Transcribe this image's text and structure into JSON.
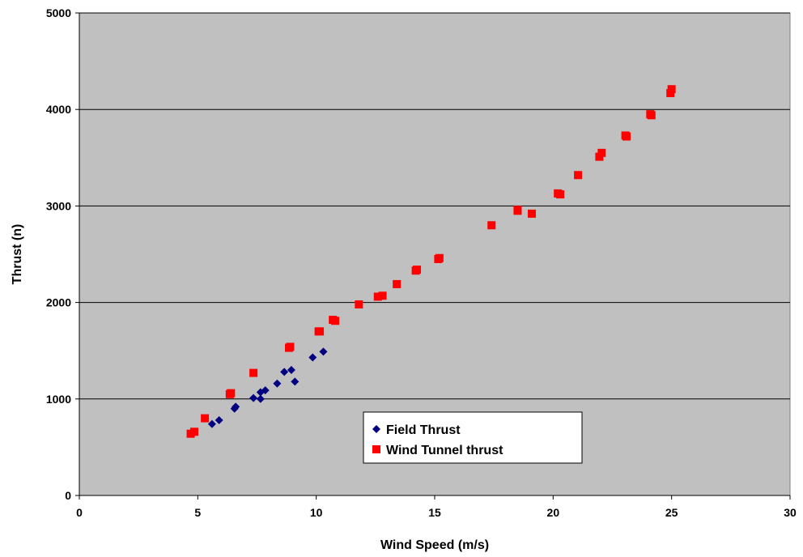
{
  "chart_data": {
    "type": "scatter",
    "title": "",
    "xlabel": "Wind Speed (m/s)",
    "ylabel": "Thrust (n)",
    "xlim": [
      0,
      30
    ],
    "ylim": [
      0,
      5000
    ],
    "x_ticks": [
      "0",
      "5",
      "10",
      "15",
      "20",
      "25",
      "30"
    ],
    "y_ticks": [
      "0",
      "1000",
      "2000",
      "3000",
      "4000",
      "5000"
    ],
    "grid": "horizontal",
    "legend_position": "bottom-center",
    "plot_background": "#c0c0c0",
    "series": [
      {
        "name": "Field Thrust",
        "marker": "diamond",
        "color": "#000080",
        "points": [
          [
            5.6,
            740
          ],
          [
            5.9,
            780
          ],
          [
            6.55,
            900
          ],
          [
            6.6,
            920
          ],
          [
            7.35,
            1010
          ],
          [
            7.65,
            1000
          ],
          [
            7.65,
            1070
          ],
          [
            7.85,
            1090
          ],
          [
            8.35,
            1160
          ],
          [
            8.65,
            1280
          ],
          [
            8.95,
            1300
          ],
          [
            9.1,
            1180
          ],
          [
            9.85,
            1430
          ],
          [
            10.3,
            1490
          ]
        ]
      },
      {
        "name": "Wind Tunnel thrust",
        "marker": "square",
        "color": "#ff0000",
        "points": [
          [
            4.7,
            640
          ],
          [
            4.85,
            660
          ],
          [
            5.3,
            800
          ],
          [
            6.35,
            1050
          ],
          [
            6.4,
            1060
          ],
          [
            7.35,
            1270
          ],
          [
            8.85,
            1530
          ],
          [
            8.9,
            1540
          ],
          [
            10.1,
            1700
          ],
          [
            10.15,
            1700
          ],
          [
            10.7,
            1820
          ],
          [
            10.8,
            1810
          ],
          [
            11.8,
            1980
          ],
          [
            12.6,
            2060
          ],
          [
            12.8,
            2070
          ],
          [
            13.4,
            2190
          ],
          [
            14.2,
            2330
          ],
          [
            14.25,
            2340
          ],
          [
            15.15,
            2450
          ],
          [
            15.2,
            2460
          ],
          [
            17.4,
            2800
          ],
          [
            18.5,
            2950
          ],
          [
            18.5,
            2960
          ],
          [
            19.1,
            2920
          ],
          [
            20.2,
            3130
          ],
          [
            20.3,
            3120
          ],
          [
            21.05,
            3320
          ],
          [
            21.95,
            3510
          ],
          [
            22.05,
            3550
          ],
          [
            23.05,
            3730
          ],
          [
            23.1,
            3720
          ],
          [
            24.1,
            3950
          ],
          [
            24.15,
            3940
          ],
          [
            24.95,
            4170
          ],
          [
            25.0,
            4210
          ]
        ]
      }
    ]
  }
}
